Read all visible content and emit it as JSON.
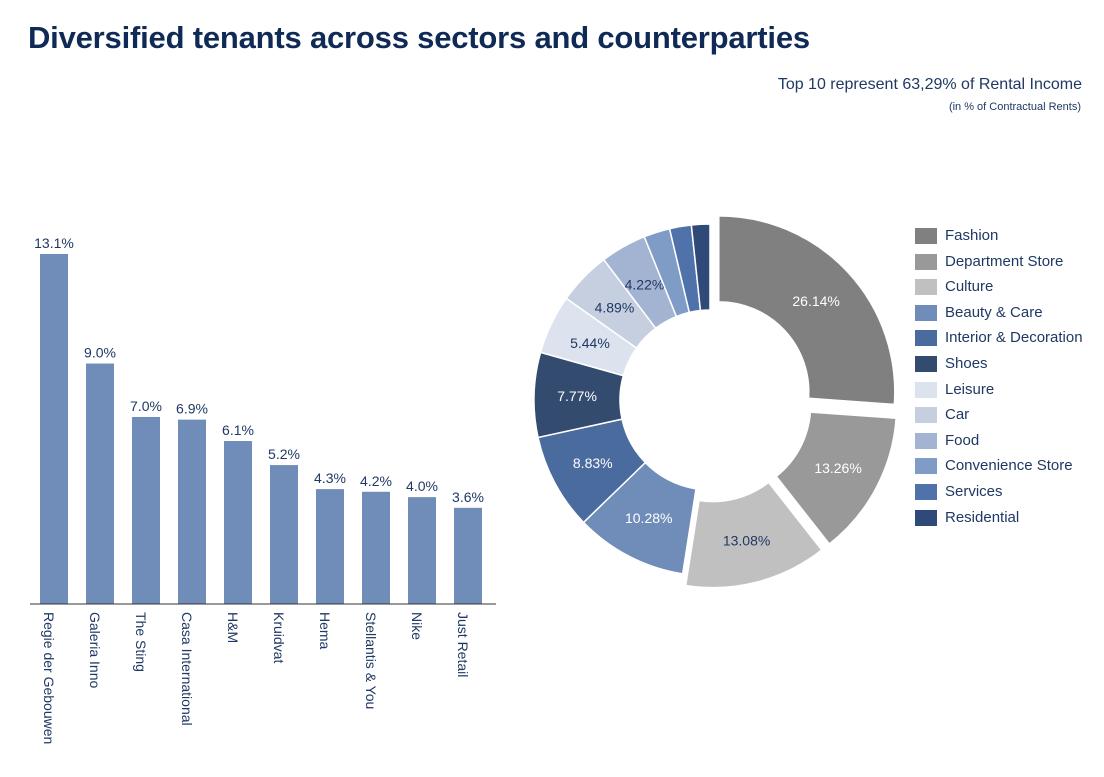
{
  "header": {
    "title": "Diversified tenants across sectors and counterparties",
    "subtitle": "Top 10 represent 63,29% of Rental Income",
    "note": "(in % of Contractual Rents)"
  },
  "chart_data": [
    {
      "type": "bar",
      "categories": [
        "Regie der Gebouwen",
        "Galeria Inno",
        "The Sting",
        "Casa International",
        "H&M",
        "Kruidvat",
        "Hema",
        "Stellantis & You",
        "Nike",
        "Just Retail"
      ],
      "values": [
        13.1,
        9.0,
        7.0,
        6.9,
        6.1,
        5.2,
        4.3,
        4.2,
        4.0,
        3.6
      ],
      "value_labels": [
        "13.1%",
        "9.0%",
        "7.0%",
        "6.9%",
        "6.1%",
        "5.2%",
        "4.3%",
        "4.2%",
        "4.0%",
        "3.6%"
      ],
      "color": "#6f8db8",
      "ylim": [
        0,
        13.1
      ]
    },
    {
      "type": "pie",
      "style": "donut",
      "categories": [
        "Fashion",
        "Department Store",
        "Culture",
        "Beauty & Care",
        "Interior & Decoration",
        "Shoes",
        "Leisure",
        "Car",
        "Food",
        "Convenience Store",
        "Services",
        "Residential"
      ],
      "values": [
        26.14,
        13.26,
        13.08,
        10.28,
        8.83,
        7.77,
        5.44,
        4.89,
        4.22,
        2.4,
        2.0,
        1.69
      ],
      "value_labels": [
        "26.14%",
        "13.26%",
        "13.08%",
        "10.28%",
        "8.83%",
        "7.77%",
        "5.44%",
        "4.89%",
        "4.22%",
        "",
        "",
        ""
      ],
      "colors": [
        "#808080",
        "#999999",
        "#c0c0c0",
        "#6f8db8",
        "#4a6b9e",
        "#344b70",
        "#dde3ee",
        "#c5cfe0",
        "#a2b4d2",
        "#7f9cc6",
        "#4f72aa",
        "#2f4a78"
      ],
      "exploded": [
        true,
        true,
        true,
        false,
        false,
        false,
        false,
        false,
        false,
        false,
        false,
        false
      ],
      "legend_position": "right"
    }
  ]
}
